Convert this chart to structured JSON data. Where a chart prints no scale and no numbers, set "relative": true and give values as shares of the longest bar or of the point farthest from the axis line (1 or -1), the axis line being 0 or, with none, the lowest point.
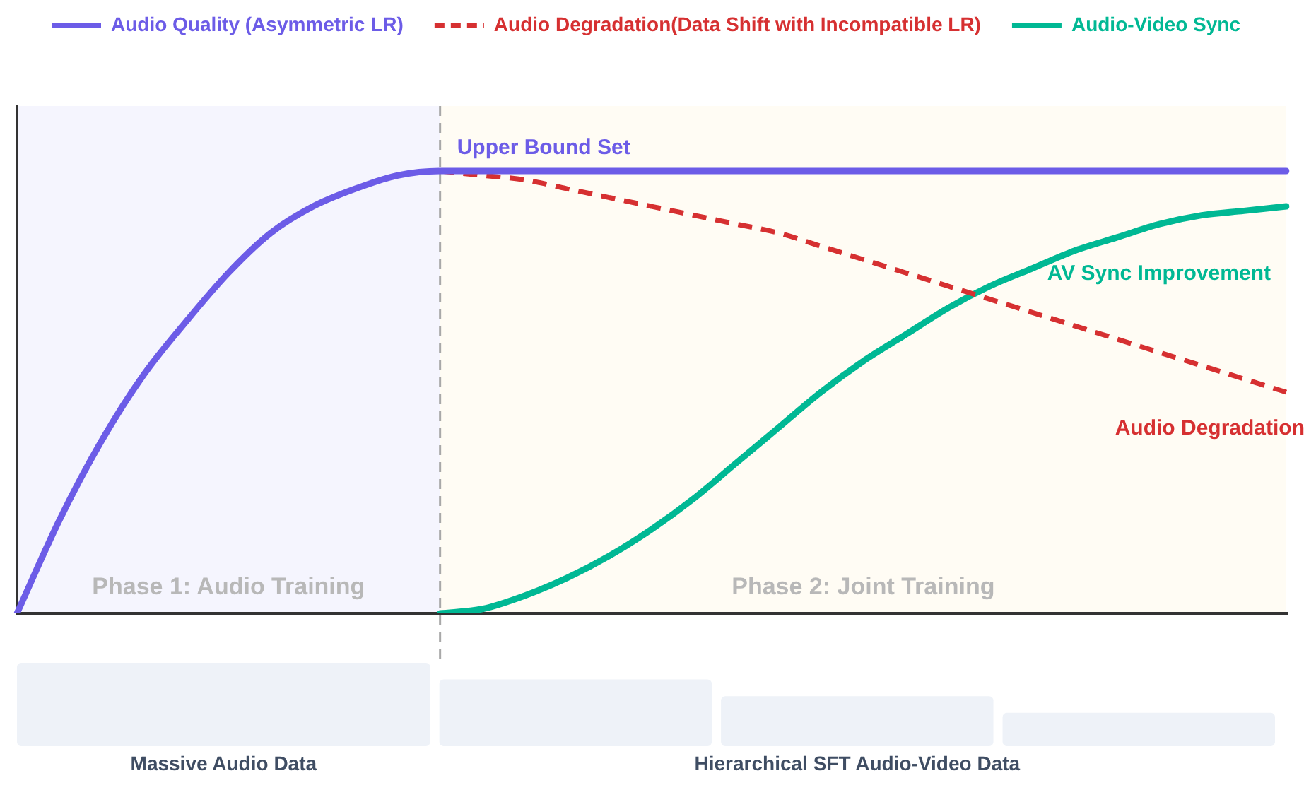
{
  "chart_data": [
    {
      "type": "line",
      "relative": true,
      "legend": "top",
      "grid": false,
      "tick_labels": false,
      "categories": [
        null,
        null,
        null,
        null,
        null,
        null,
        null,
        null,
        null,
        null,
        null,
        null,
        null,
        null,
        null,
        null,
        null,
        null,
        null,
        null,
        null,
        null,
        null,
        null,
        null,
        null,
        null,
        null,
        null,
        null,
        null
      ],
      "series": [
        {
          "name": "Audio Quality (Asymmetric LR)",
          "color": "#6c5ce7",
          "values": [
            0,
            0.21,
            0.39,
            0.54,
            0.66,
            0.77,
            0.86,
            0.92,
            0.96,
            0.99,
            1,
            1,
            1,
            1,
            1,
            1,
            1,
            1,
            1,
            1,
            1,
            1,
            1,
            1,
            1,
            1,
            1,
            1,
            1,
            1,
            1
          ]
        },
        {
          "name": "Audio Degradation(Data Shift with Incompatible LR)",
          "color": "#d63031",
          "line_style": "dashed",
          "values": [
            null,
            null,
            null,
            null,
            null,
            null,
            null,
            null,
            null,
            null,
            1,
            0.99,
            0.98,
            0.96,
            0.94,
            0.92,
            0.9,
            0.88,
            0.86,
            0.83,
            0.8,
            0.77,
            0.74,
            0.71,
            0.68,
            0.65,
            0.62,
            0.59,
            0.56,
            0.53,
            0.5
          ]
        },
        {
          "name": "Audio-Video Sync",
          "color": "#00b894",
          "values": [
            null,
            null,
            null,
            null,
            null,
            null,
            null,
            null,
            null,
            null,
            0,
            0.01,
            0.04,
            0.08,
            0.13,
            0.19,
            0.26,
            0.34,
            0.42,
            0.5,
            0.57,
            0.63,
            0.69,
            0.74,
            0.78,
            0.82,
            0.85,
            0.88,
            0.9,
            0.91,
            0.92
          ]
        }
      ],
      "annotations": [
        "Upper Bound Set",
        "AV Sync Improvement",
        "Audio Degradation",
        "Phase 1: Audio Training",
        "Phase 2: Joint Training"
      ]
    },
    {
      "type": "bar",
      "relative": true,
      "tick_labels": "x",
      "categories": [
        "Massive Audio Data",
        null,
        "Hierarchical SFT Audio-Video Data",
        null
      ],
      "values": [
        1,
        0.8,
        0.6,
        0.4
      ],
      "color": "#eef2f8"
    }
  ]
}
